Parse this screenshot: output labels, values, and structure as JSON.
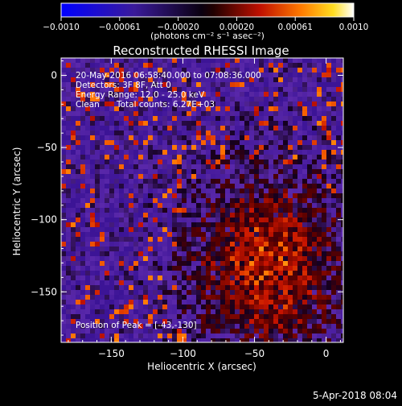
{
  "title": "Reconstructed RHESSI Image",
  "colorbar": {
    "tick_labels": [
      "−0.0010",
      "−0.00061",
      "−0.00020",
      "0.00020",
      "0.00061",
      "0.0010"
    ],
    "unit_label": "(photons cm⁻² s⁻¹ asec⁻²)",
    "range": [
      -0.001,
      0.001
    ],
    "colormap": "blue-black-red-yellow-white"
  },
  "info": {
    "time_range": "20-May-2016 06:58:40.000 to 07:08:36.000",
    "detectors": "Detectors: 3F 8F, Att 0",
    "energy_range": "Energy Range: 12.0 - 25.0 keV",
    "algorithm": "Clean",
    "total_counts": "Total counts: 6.27E+03"
  },
  "peak_label": "Position of Peak = [-43,-130]",
  "peak_position": [
    -43,
    -130
  ],
  "axes": {
    "xlabel": "Heliocentric X (arcsec)",
    "ylabel": "Heliocentric Y (arcsec)",
    "xlim": [
      -185,
      12
    ],
    "ylim": [
      -185,
      12
    ],
    "xticks": [
      "-150",
      "-100",
      "-50",
      "0"
    ],
    "yticks": [
      "0",
      "-50",
      "-100",
      "-150"
    ]
  },
  "timestamp": "5-Apr-2018 08:04",
  "colors": {
    "background": "#000000",
    "foreground": "#ffffff",
    "noise_purple": "#4a1a8c",
    "bright_yellow": "#ffe040"
  }
}
